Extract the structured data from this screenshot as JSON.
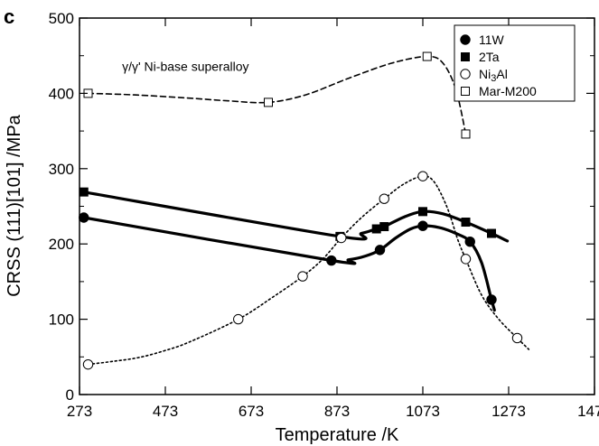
{
  "chart_data": {
    "type": "line",
    "panel_label": "c",
    "xlabel": "Temperature /K",
    "ylabel": "CRSS (111)[101] /MPa",
    "xlim": [
      273,
      1473
    ],
    "ylim": [
      0,
      500
    ],
    "x_ticks": [
      273,
      473,
      673,
      873,
      1073,
      1273,
      1473
    ],
    "y_ticks": [
      0,
      100,
      200,
      300,
      400,
      500
    ],
    "grid": false,
    "legend_position": "top-right",
    "annotations": [
      {
        "text": "γ/γ' Ni-base superalloy",
        "x": 520,
        "y": 430
      }
    ],
    "series": [
      {
        "name": "11W",
        "marker": "filled-circle",
        "line": "solid-thick",
        "points": [
          [
            283,
            235
          ],
          [
            860,
            178
          ],
          [
            973,
            192
          ],
          [
            1073,
            224
          ],
          [
            1183,
            203
          ],
          [
            1233,
            126
          ]
        ],
        "curve": [
          [
            283,
            235
          ],
          [
            860,
            178
          ],
          [
            900,
            179
          ],
          [
            940,
            184
          ],
          [
            973,
            192
          ],
          [
            1010,
            208
          ],
          [
            1045,
            220
          ],
          [
            1073,
            224
          ],
          [
            1110,
            222
          ],
          [
            1150,
            214
          ],
          [
            1183,
            203
          ],
          [
            1210,
            175
          ],
          [
            1233,
            126
          ],
          [
            1240,
            112
          ]
        ]
      },
      {
        "name": "2Ta",
        "marker": "filled-square",
        "line": "solid-thick",
        "points": [
          [
            283,
            269
          ],
          [
            880,
            210
          ],
          [
            965,
            220
          ],
          [
            983,
            223
          ],
          [
            1073,
            243
          ],
          [
            1173,
            229
          ],
          [
            1233,
            214
          ]
        ],
        "curve": [
          [
            283,
            269
          ],
          [
            880,
            210
          ],
          [
            930,
            214
          ],
          [
            965,
            220
          ],
          [
            983,
            223
          ],
          [
            1030,
            236
          ],
          [
            1073,
            243
          ],
          [
            1120,
            240
          ],
          [
            1173,
            229
          ],
          [
            1233,
            214
          ],
          [
            1270,
            204
          ]
        ]
      },
      {
        "name": "Ni3Al",
        "legend_label": "Ni3Al",
        "marker": "open-circle",
        "line": "dotted",
        "points": [
          [
            293,
            40
          ],
          [
            643,
            100
          ],
          [
            793,
            157
          ],
          [
            883,
            208
          ],
          [
            983,
            260
          ],
          [
            1073,
            290
          ],
          [
            1173,
            180
          ],
          [
            1293,
            75
          ]
        ],
        "curve": [
          [
            293,
            40
          ],
          [
            350,
            44
          ],
          [
            410,
            49
          ],
          [
            470,
            58
          ],
          [
            530,
            70
          ],
          [
            643,
            100
          ],
          [
            720,
            128
          ],
          [
            793,
            157
          ],
          [
            840,
            180
          ],
          [
            883,
            208
          ],
          [
            930,
            235
          ],
          [
            983,
            260
          ],
          [
            1030,
            280
          ],
          [
            1073,
            290
          ],
          [
            1100,
            282
          ],
          [
            1130,
            248
          ],
          [
            1155,
            205
          ],
          [
            1173,
            180
          ],
          [
            1210,
            132
          ],
          [
            1250,
            100
          ],
          [
            1293,
            75
          ],
          [
            1320,
            60
          ]
        ]
      },
      {
        "name": "Mar-M200",
        "marker": "open-square",
        "line": "dashed",
        "points": [
          [
            293,
            400
          ],
          [
            713,
            388
          ],
          [
            1083,
            449
          ],
          [
            1173,
            346
          ]
        ],
        "curve": [
          [
            293,
            400
          ],
          [
            400,
            398
          ],
          [
            520,
            394
          ],
          [
            620,
            390
          ],
          [
            713,
            388
          ],
          [
            800,
            398
          ],
          [
            900,
            420
          ],
          [
            1000,
            440
          ],
          [
            1083,
            449
          ],
          [
            1120,
            440
          ],
          [
            1150,
            405
          ],
          [
            1173,
            346
          ]
        ]
      }
    ]
  }
}
